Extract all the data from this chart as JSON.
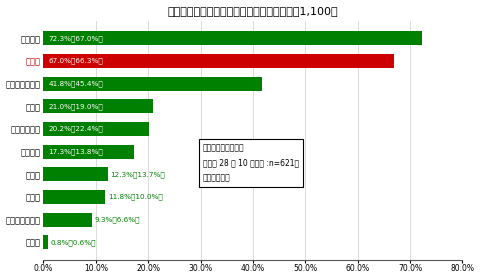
{
  "title": "建物の性能で重視する事項は？　（回答数：1,100）",
  "categories": [
    "高耗久性",
    "耗震性",
    "省エネルギー性",
    "遝音性",
    "通風・換気性",
    "劣化対策",
    "防犯性",
    "耗火性",
    "バリアフリー性",
    "その他"
  ],
  "values": [
    72.3,
    67.0,
    41.8,
    21.0,
    20.2,
    17.3,
    12.3,
    11.8,
    9.3,
    0.8
  ],
  "prev_values": [
    67.0,
    66.3,
    45.4,
    19.0,
    22.4,
    13.8,
    13.7,
    10.0,
    6.6,
    0.6
  ],
  "bar_colors": [
    "#008000",
    "#cc0000",
    "#008000",
    "#008000",
    "#008000",
    "#008000",
    "#008000",
    "#008000",
    "#008000",
    "#008000"
  ],
  "inside_label_threshold": 17.0,
  "inside_label_color": "#ffffff",
  "outside_label_color": "#008000",
  "ylabel_color_special": "#cc0000",
  "ylabel_color_normal": "#000000",
  "special_index": 1,
  "xlim": [
    0,
    80
  ],
  "xticks": [
    0,
    10,
    20,
    30,
    40,
    50,
    60,
    70,
    80
  ],
  "xtick_labels": [
    "0.0%",
    "10.0%",
    "20.0%",
    "30.0%",
    "40.0%",
    "50.0%",
    "60.0%",
    "70.0%",
    "80.0%"
  ],
  "note_line1": "（　）内は前回調査",
  "note_line2": "＼平成 28 年 10 月公表 :n=621］",
  "note_line3": "の回答構成比",
  "background_color": "#ffffff",
  "grid_color": "#cccccc",
  "bar_height": 0.62
}
